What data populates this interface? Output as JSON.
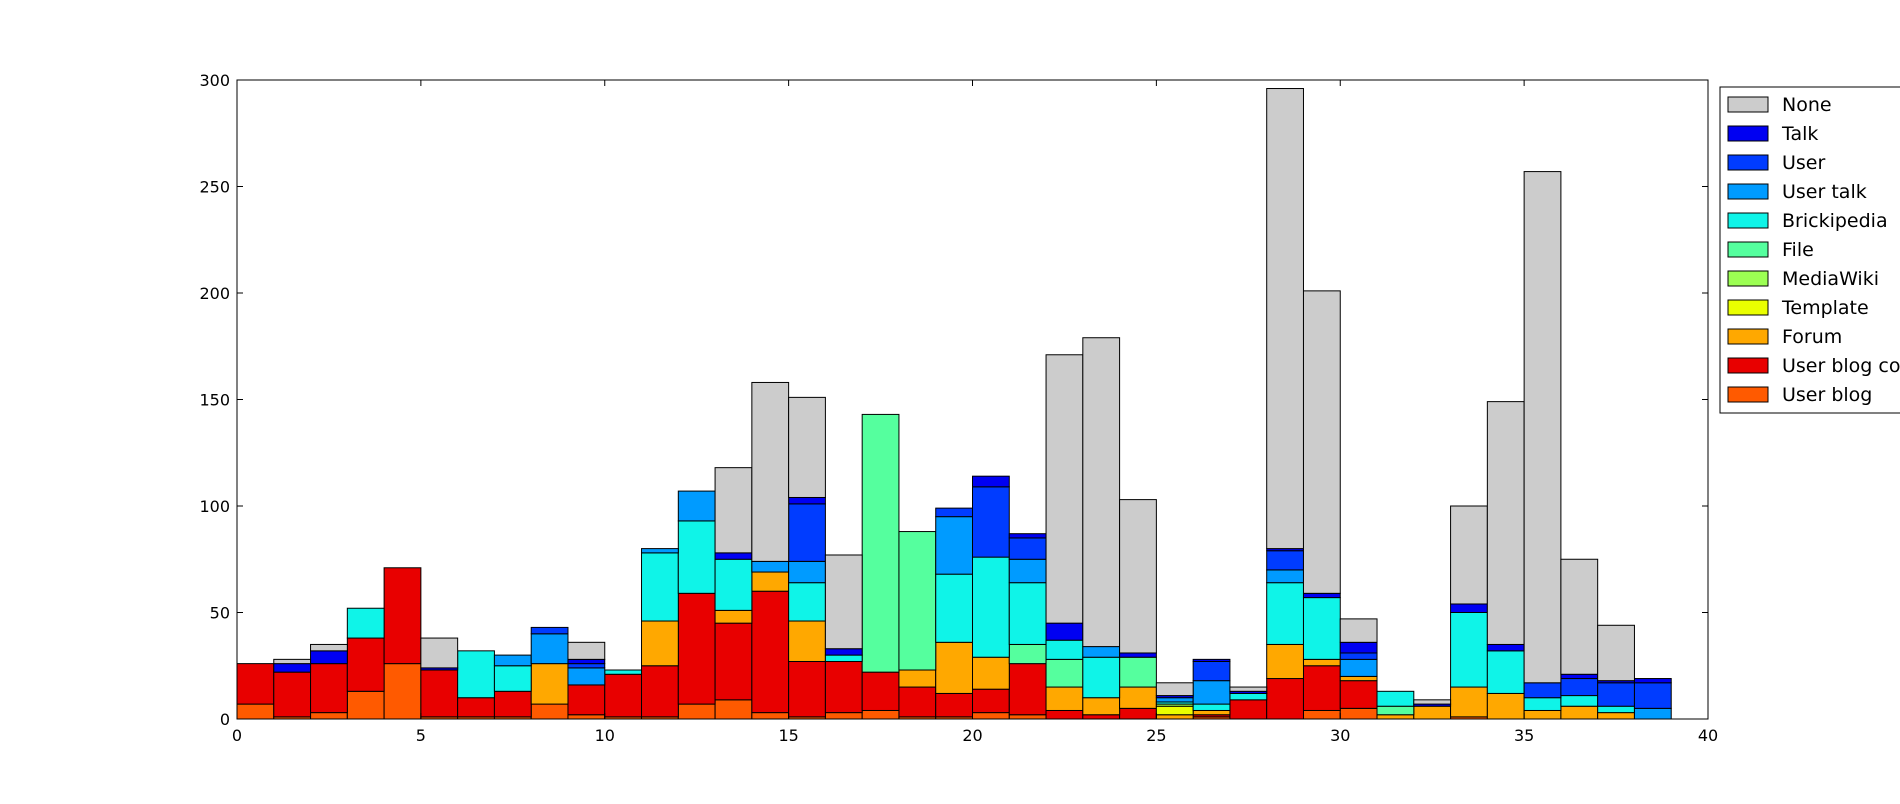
{
  "chart_data": {
    "type": "bar",
    "stacked": true,
    "title": "",
    "xlabel": "",
    "ylabel": "",
    "xlim": [
      0,
      40
    ],
    "ylim": [
      0,
      300
    ],
    "xticks": [
      0,
      5,
      10,
      15,
      20,
      25,
      30,
      35,
      40
    ],
    "yticks": [
      0,
      50,
      100,
      150,
      200,
      250,
      300
    ],
    "grid": false,
    "legend_position": "outside top-right (clipped)",
    "bar_width": 1,
    "x": [
      0,
      1,
      2,
      3,
      4,
      5,
      6,
      7,
      8,
      9,
      10,
      11,
      12,
      13,
      14,
      15,
      16,
      17,
      18,
      19,
      20,
      21,
      22,
      23,
      24,
      25,
      26,
      27,
      28,
      29,
      30,
      31,
      32,
      33,
      34,
      35,
      36,
      37,
      38
    ],
    "series": [
      {
        "name": "User blog",
        "color": "#ff5a00",
        "values": [
          7,
          1,
          3,
          13,
          26,
          1,
          1,
          1,
          7,
          2,
          1,
          1,
          7,
          9,
          3,
          1,
          3,
          4,
          1,
          1,
          3,
          2,
          0,
          0,
          0,
          0,
          1,
          0,
          0,
          4,
          5,
          0,
          0,
          1,
          0,
          0,
          0,
          0,
          0
        ]
      },
      {
        "name": "User blog comment",
        "color": "#e80000",
        "values": [
          19,
          21,
          23,
          25,
          45,
          22,
          9,
          12,
          0,
          14,
          20,
          24,
          52,
          36,
          57,
          26,
          24,
          18,
          14,
          11,
          11,
          24,
          4,
          2,
          5,
          0,
          1,
          9,
          19,
          21,
          13,
          0,
          0,
          0,
          0,
          0,
          0,
          0,
          0
        ]
      },
      {
        "name": "Forum",
        "color": "#ffa800",
        "values": [
          0,
          0,
          0,
          0,
          0,
          0,
          0,
          0,
          19,
          0,
          0,
          21,
          0,
          6,
          9,
          19,
          0,
          0,
          8,
          24,
          15,
          0,
          11,
          8,
          10,
          2,
          2,
          0,
          16,
          3,
          2,
          2,
          6,
          14,
          12,
          4,
          6,
          3,
          0
        ]
      },
      {
        "name": "Template",
        "color": "#eaff00",
        "values": [
          0,
          0,
          0,
          0,
          0,
          0,
          0,
          0,
          0,
          0,
          0,
          0,
          0,
          0,
          0,
          0,
          0,
          0,
          0,
          0,
          0,
          0,
          0,
          0,
          0,
          4,
          0,
          0,
          0,
          0,
          0,
          0,
          0,
          0,
          0,
          0,
          0,
          0,
          0
        ]
      },
      {
        "name": "MediaWiki",
        "color": "#9cff53",
        "values": [
          0,
          0,
          0,
          0,
          0,
          0,
          0,
          0,
          0,
          0,
          0,
          0,
          0,
          0,
          0,
          0,
          0,
          0,
          0,
          0,
          0,
          0,
          0,
          0,
          0,
          1,
          0,
          0,
          0,
          0,
          0,
          0,
          0,
          0,
          0,
          0,
          0,
          0,
          0
        ]
      },
      {
        "name": "File",
        "color": "#55ff9e",
        "values": [
          0,
          0,
          0,
          0,
          0,
          0,
          0,
          0,
          0,
          0,
          0,
          0,
          0,
          0,
          0,
          0,
          0,
          121,
          65,
          0,
          0,
          9,
          13,
          0,
          14,
          0,
          0,
          0,
          0,
          0,
          0,
          4,
          0,
          0,
          0,
          0,
          0,
          0,
          0
        ]
      },
      {
        "name": "Brickipedia",
        "color": "#0ff4e8",
        "values": [
          0,
          0,
          0,
          14,
          0,
          0,
          22,
          12,
          0,
          0,
          2,
          32,
          34,
          24,
          0,
          18,
          3,
          0,
          0,
          32,
          47,
          29,
          9,
          19,
          0,
          1,
          3,
          3,
          29,
          29,
          0,
          7,
          0,
          35,
          20,
          6,
          5,
          3,
          0
        ]
      },
      {
        "name": "User talk",
        "color": "#009bff",
        "values": [
          0,
          0,
          0,
          0,
          0,
          0,
          0,
          5,
          14,
          8,
          0,
          2,
          14,
          0,
          5,
          10,
          0,
          0,
          0,
          27,
          0,
          11,
          0,
          5,
          0,
          2,
          11,
          0,
          6,
          0,
          8,
          0,
          0,
          0,
          0,
          0,
          0,
          0,
          5
        ]
      },
      {
        "name": "User",
        "color": "#003cff",
        "values": [
          0,
          0,
          0,
          0,
          0,
          0,
          0,
          0,
          3,
          2,
          0,
          0,
          0,
          0,
          0,
          27,
          0,
          0,
          0,
          4,
          33,
          10,
          0,
          0,
          0,
          0,
          9,
          0,
          9,
          0,
          3,
          0,
          0,
          0,
          0,
          7,
          8,
          11,
          12
        ]
      },
      {
        "name": "Talk",
        "color": "#0000f2",
        "values": [
          0,
          4,
          6,
          0,
          0,
          1,
          0,
          0,
          0,
          2,
          0,
          0,
          0,
          3,
          0,
          3,
          3,
          0,
          0,
          0,
          5,
          2,
          8,
          0,
          2,
          1,
          1,
          1,
          1,
          2,
          5,
          0,
          1,
          4,
          3,
          0,
          2,
          1,
          2
        ]
      },
      {
        "name": "None",
        "color": "#cccccc",
        "values": [
          0,
          2,
          3,
          0,
          0,
          14,
          0,
          0,
          0,
          8,
          0,
          0,
          0,
          40,
          84,
          47,
          44,
          0,
          0,
          0,
          0,
          0,
          126,
          145,
          72,
          6,
          0,
          2,
          216,
          142,
          11,
          0,
          2,
          46,
          114,
          240,
          54,
          26,
          0
        ]
      }
    ]
  }
}
